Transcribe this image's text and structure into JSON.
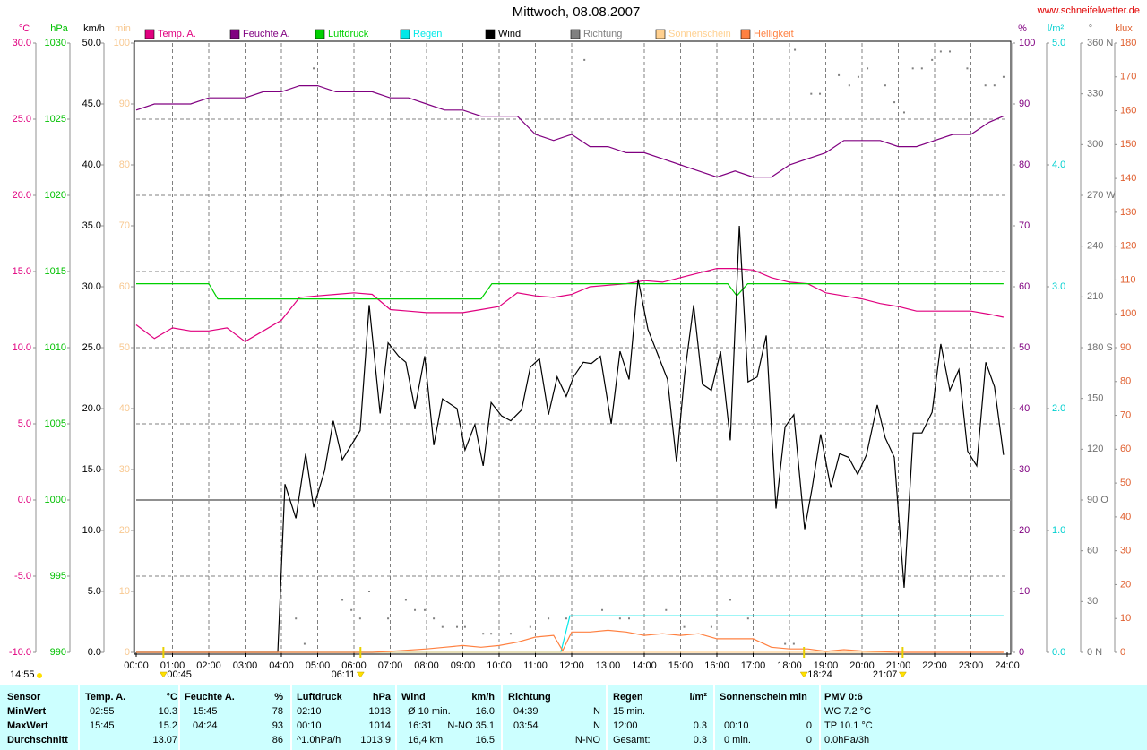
{
  "chart_data": {
    "type": "line",
    "title": "Mittwoch, 08.08.2007",
    "source": "www.schneifelwetter.de",
    "grid": true,
    "xlim": [
      0,
      24
    ],
    "xticks": [
      {
        "value": 0,
        "label": "00:00"
      },
      {
        "value": 1,
        "label": "01:00"
      },
      {
        "value": 2,
        "label": "02:00"
      },
      {
        "value": 3,
        "label": "03:00"
      },
      {
        "value": 4,
        "label": "04:00"
      },
      {
        "value": 5,
        "label": "05:00"
      },
      {
        "value": 6,
        "label": "06:00"
      },
      {
        "value": 7,
        "label": "07:00"
      },
      {
        "value": 8,
        "label": "08:00"
      },
      {
        "value": 9,
        "label": "09:00"
      },
      {
        "value": 10,
        "label": "10:00"
      },
      {
        "value": 11,
        "label": "11:00"
      },
      {
        "value": 12,
        "label": "12:00"
      },
      {
        "value": 13,
        "label": "13:00"
      },
      {
        "value": 14,
        "label": "14:00"
      },
      {
        "value": 15,
        "label": "15:00"
      },
      {
        "value": 16,
        "label": "16:00"
      },
      {
        "value": 17,
        "label": "17:00"
      },
      {
        "value": 18,
        "label": "18:00"
      },
      {
        "value": 19,
        "label": "19:00"
      },
      {
        "value": 20,
        "label": "20:00"
      },
      {
        "value": 21,
        "label": "21:00"
      },
      {
        "value": 22,
        "label": "22:00"
      },
      {
        "value": 23,
        "label": "23:00"
      },
      {
        "value": 24,
        "label": "24:00"
      }
    ],
    "axes": [
      {
        "unit": "°C",
        "side": "left",
        "color": "#e0007f",
        "lim": [
          -10,
          30
        ],
        "ticks": [
          {
            "value": -10,
            "label": "-10.0"
          },
          {
            "value": -5,
            "label": "-5.0"
          },
          {
            "value": 0,
            "label": "0.0"
          },
          {
            "value": 5,
            "label": "5.0"
          },
          {
            "value": 10,
            "label": "10.0"
          },
          {
            "value": 15,
            "label": "15.0"
          },
          {
            "value": 20,
            "label": "20.0"
          },
          {
            "value": 25,
            "label": "25.0"
          },
          {
            "value": 30,
            "label": "30.0"
          }
        ]
      },
      {
        "unit": "hPa",
        "side": "left",
        "color": "#00c000",
        "lim": [
          990,
          1030
        ],
        "ticks": [
          990,
          995,
          1000,
          1005,
          1010,
          1015,
          1020,
          1025,
          1030
        ]
      },
      {
        "unit": "km/h",
        "side": "left",
        "color": "#000000",
        "lim": [
          0,
          50
        ],
        "ticks": [
          {
            "value": 0,
            "label": "0.0"
          },
          {
            "value": 5,
            "label": "5.0"
          },
          {
            "value": 10,
            "label": "10.0"
          },
          {
            "value": 15,
            "label": "15.0"
          },
          {
            "value": 20,
            "label": "20.0"
          },
          {
            "value": 25,
            "label": "25.0"
          },
          {
            "value": 30,
            "label": "30.0"
          },
          {
            "value": 35,
            "label": "35.0"
          },
          {
            "value": 40,
            "label": "40.0"
          },
          {
            "value": 45,
            "label": "45.0"
          },
          {
            "value": 50,
            "label": "50.0"
          }
        ]
      },
      {
        "unit": "min",
        "side": "left",
        "color": "#f8c890",
        "lim": [
          0,
          100
        ],
        "ticks": [
          0,
          10,
          20,
          30,
          40,
          50,
          60,
          70,
          80,
          90,
          100
        ]
      },
      {
        "unit": "%",
        "side": "right",
        "color": "#800080",
        "lim": [
          0,
          100
        ],
        "ticks": [
          0,
          10,
          20,
          30,
          40,
          50,
          60,
          70,
          80,
          90,
          100
        ]
      },
      {
        "unit": "l/m²",
        "side": "right",
        "color": "#00d0d0",
        "lim": [
          0,
          5
        ],
        "ticks": [
          {
            "value": 0,
            "label": "0.0"
          },
          {
            "value": 1,
            "label": "1.0"
          },
          {
            "value": 2,
            "label": "2.0"
          },
          {
            "value": 3,
            "label": "3.0"
          },
          {
            "value": 4,
            "label": "4.0"
          },
          {
            "value": 5,
            "label": "5.0"
          }
        ]
      },
      {
        "unit": "°",
        "side": "right",
        "color": "#707070",
        "lim": [
          0,
          360
        ],
        "ticks": [
          {
            "value": 0,
            "label": "0 N"
          },
          30,
          60,
          {
            "value": 90,
            "label": "90 O"
          },
          120,
          150,
          {
            "value": 180,
            "label": "180 S"
          },
          210,
          240,
          {
            "value": 270,
            "label": "270 W"
          },
          300,
          330,
          {
            "value": 360,
            "label": "360 N"
          }
        ]
      },
      {
        "unit": "klux",
        "side": "right",
        "color": "#e06030",
        "lim": [
          0,
          180
        ],
        "ticks": [
          0,
          10,
          20,
          30,
          40,
          50,
          60,
          70,
          80,
          90,
          100,
          110,
          120,
          130,
          140,
          150,
          160,
          170,
          180
        ]
      }
    ],
    "series": [
      {
        "name": "Temp. A.",
        "color": "#e0007f",
        "axis": "°C",
        "type": "line",
        "x": [
          0,
          0.5,
          1,
          1.5,
          2,
          2.5,
          3,
          3.5,
          4,
          4.5,
          5,
          5.5,
          6,
          6.5,
          7,
          7.5,
          8,
          8.5,
          9,
          9.5,
          10,
          10.5,
          11,
          11.5,
          12,
          12.5,
          13,
          13.5,
          14,
          14.5,
          15,
          15.5,
          16,
          16.5,
          17,
          17.5,
          18,
          18.5,
          19,
          19.5,
          20,
          20.5,
          21,
          21.5,
          22,
          22.5,
          23,
          23.5,
          23.9
        ],
        "values": [
          11.5,
          10.6,
          11.3,
          11.1,
          11.1,
          11.3,
          10.4,
          11.1,
          11.8,
          13.3,
          13.4,
          13.5,
          13.6,
          13.5,
          12.5,
          12.4,
          12.3,
          12.3,
          12.3,
          12.5,
          12.7,
          13.6,
          13.4,
          13.3,
          13.5,
          14.0,
          14.1,
          14.2,
          14.4,
          14.3,
          14.6,
          14.9,
          15.2,
          15.2,
          15.1,
          14.6,
          14.3,
          14.2,
          13.6,
          13.4,
          13.2,
          12.9,
          12.7,
          12.4,
          12.4,
          12.4,
          12.4,
          12.2,
          12.0
        ]
      },
      {
        "name": "Feuchte A.",
        "color": "#800080",
        "axis": "%",
        "type": "line",
        "x": [
          0,
          0.5,
          1,
          1.5,
          2,
          2.5,
          3,
          3.5,
          4,
          4.5,
          5,
          5.5,
          6,
          6.5,
          7,
          7.5,
          8,
          8.5,
          9,
          9.5,
          10,
          10.5,
          11,
          11.5,
          12,
          12.5,
          13,
          13.5,
          14,
          14.5,
          15,
          15.5,
          16,
          16.5,
          17,
          17.5,
          18,
          18.5,
          19,
          19.5,
          20,
          20.5,
          21,
          21.5,
          22,
          22.5,
          23,
          23.5,
          23.9
        ],
        "values": [
          89,
          90,
          90,
          90,
          91,
          91,
          91,
          92,
          92,
          93,
          93,
          92,
          92,
          92,
          91,
          91,
          90,
          89,
          89,
          88,
          88,
          88,
          85,
          84,
          85,
          83,
          83,
          82,
          82,
          81,
          80,
          79,
          78,
          79,
          78,
          78,
          80,
          81,
          82,
          84,
          84,
          84,
          83,
          83,
          84,
          85,
          85,
          87,
          88
        ]
      },
      {
        "name": "Luftdruck",
        "color": "#00d000",
        "axis": "hPa",
        "type": "line",
        "x": [
          0,
          2,
          2.25,
          9.5,
          9.8,
          16.3,
          16.55,
          16.85,
          23.9
        ],
        "values": [
          1014.2,
          1014.2,
          1013.2,
          1013.2,
          1014.2,
          1014.2,
          1013.4,
          1014.2,
          1014.2
        ]
      },
      {
        "name": "Regen",
        "color": "#00e8e8",
        "axis": "l/m²",
        "type": "line",
        "x": [
          0,
          11.7,
          11.95,
          23.9
        ],
        "values": [
          0,
          0,
          0.3,
          0.3
        ]
      },
      {
        "name": "Wind",
        "color": "#000000",
        "axis": "km/h",
        "type": "line",
        "x": [
          0,
          3.9,
          4.1,
          4.4,
          4.67,
          4.89,
          5.19,
          5.43,
          5.68,
          6.17,
          6.42,
          6.72,
          6.94,
          7.23,
          7.43,
          7.68,
          7.95,
          8.2,
          8.44,
          8.84,
          9.06,
          9.33,
          9.56,
          9.78,
          10.07,
          10.32,
          10.62,
          10.86,
          11.11,
          11.36,
          11.6,
          11.85,
          12.05,
          12.32,
          12.54,
          12.79,
          13.09,
          13.33,
          13.58,
          13.83,
          14.1,
          14.35,
          14.64,
          14.89,
          15.11,
          15.36,
          15.6,
          15.85,
          16.1,
          16.37,
          16.62,
          16.86,
          17.11,
          17.36,
          17.63,
          17.88,
          18.12,
          18.42,
          18.62,
          18.86,
          19.14,
          19.38,
          19.63,
          19.88,
          20.12,
          20.42,
          20.64,
          20.89,
          21.16,
          21.41,
          21.65,
          21.93,
          22.17,
          22.42,
          22.67,
          22.91,
          23.16,
          23.41,
          23.65,
          23.9
        ],
        "values": [
          0,
          0,
          13.8,
          11,
          16.3,
          11.9,
          14.9,
          19,
          15.8,
          18.2,
          28.5,
          19.6,
          25.4,
          24.3,
          23.8,
          20,
          24.3,
          17,
          20.8,
          20,
          16.6,
          18.7,
          15.3,
          20.5,
          19.4,
          19,
          19.9,
          23.4,
          24.1,
          19.5,
          22.6,
          21,
          22.6,
          23.8,
          23.7,
          24.3,
          18.75,
          24.7,
          22.4,
          30.6,
          26.5,
          24.6,
          22.4,
          15.6,
          22.8,
          28.5,
          22,
          21.5,
          24.7,
          17.4,
          35,
          22.2,
          22.6,
          26,
          11.8,
          18.5,
          19.5,
          10.1,
          13.4,
          17.9,
          13.5,
          16.3,
          16,
          14.6,
          16.2,
          20.3,
          17.6,
          16,
          5.3,
          18,
          18,
          19.7,
          25.3,
          21.5,
          23.2,
          16.5,
          15.3,
          23.8,
          21.8,
          16.2
        ]
      },
      {
        "name": "Richtung",
        "color": "#808080",
        "axis": "°",
        "type": "scatter",
        "x": [
          4.89,
          12.35,
          18.15,
          18.6,
          18.84,
          19.36,
          19.65,
          19.9,
          20.15,
          20.64,
          20.89,
          21.16,
          21.4,
          21.65,
          21.93,
          22.17,
          22.42,
          22.9,
          23.4,
          23.65,
          23.9,
          4.4,
          4.64,
          5.68,
          5.93,
          6.17,
          6.42,
          6.94,
          7.43,
          7.68,
          7.95,
          8.2,
          8.44,
          8.84,
          9.06,
          9.56,
          9.78,
          10.32,
          10.86,
          11.36,
          11.85,
          12.84,
          13.33,
          13.58,
          14.6,
          15.1,
          15.85,
          16.37,
          16.86,
          17.88,
          18.12
        ],
        "values": [
          345,
          350,
          356,
          330,
          330,
          341,
          335,
          340,
          345,
          335,
          325,
          319,
          345,
          345,
          350,
          355,
          355,
          345,
          335,
          335,
          340,
          20,
          5,
          31,
          25,
          20,
          36,
          20,
          31,
          25,
          25,
          20,
          15,
          15,
          15,
          11,
          11,
          11,
          15,
          20,
          20,
          25,
          20,
          20,
          25,
          15,
          15,
          31,
          20,
          5,
          5
        ]
      },
      {
        "name": "Sonnenschein",
        "color": "#ffd090",
        "axis": "min",
        "type": "line",
        "x": [
          0,
          23.9
        ],
        "values": [
          0,
          0
        ]
      },
      {
        "name": "Helligkeit",
        "color": "#ff8040",
        "axis": "klux",
        "type": "line",
        "x": [
          0,
          6.5,
          7,
          8,
          8.5,
          9,
          9.5,
          10,
          10.5,
          11,
          11.5,
          11.75,
          12,
          12.5,
          13,
          13.5,
          14,
          14.5,
          15,
          15.5,
          16,
          16.5,
          17,
          17.5,
          18,
          18.5,
          19,
          19.5,
          20,
          20.5,
          21,
          23.9
        ],
        "values": [
          0,
          0,
          0.3,
          1,
          1.5,
          2,
          1.5,
          2,
          3,
          4.5,
          5,
          0.5,
          6,
          6,
          6.5,
          6,
          5,
          5.5,
          5,
          5.5,
          4,
          4,
          4,
          1.5,
          1,
          1,
          0.3,
          0.8,
          0.4,
          0.2,
          0,
          0
        ]
      }
    ],
    "annotations": [
      {
        "label": "14:55",
        "x": null
      },
      {
        "label": "00:45",
        "x": 0.75
      },
      {
        "label": "06:11",
        "x": 6.18
      },
      {
        "label": "18:24",
        "x": 18.4
      },
      {
        "label": "21:07",
        "x": 21.12
      }
    ]
  },
  "table": {
    "header": [
      "Sensor",
      "Temp. A.",
      "°C",
      "Feuchte A.",
      "%",
      "Luftdruck",
      "hPa",
      "Wind",
      "km/h",
      "Richtung",
      "Regen",
      "l/m²",
      "Sonnenschein min",
      "PMV 0:6"
    ],
    "rows": [
      [
        "MinWert",
        "02:55",
        "10.3",
        "15:45",
        "78",
        "02:10",
        "1013",
        "Ø 10 min.",
        "16.0",
        "04:39",
        "N",
        "15 min.",
        null,
        null,
        null,
        "WC 7.2 °C"
      ],
      [
        "MaxWert",
        "15:45",
        "15.2",
        "04:24",
        "93",
        "00:10",
        "1014",
        "16:31",
        "N-NO 35.1",
        "03:54",
        "N",
        "12:00",
        "0.3",
        "00:10",
        "0",
        "TP 10.1 °C"
      ],
      [
        "Durchschnitt",
        null,
        "13.07",
        null,
        "86",
        "^1.0hPa/h",
        "1013.9",
        "16,4 km",
        "16.5",
        null,
        "N-NO",
        "Gesamt:",
        "0.3",
        "0 min.",
        "0",
        "0.0hPa/3h"
      ]
    ]
  }
}
